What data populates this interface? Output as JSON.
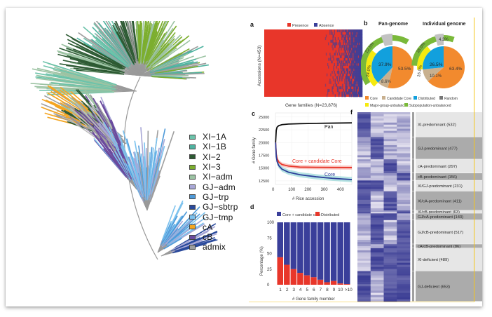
{
  "figure": {
    "tree_legend": [
      {
        "label": "XI-1A",
        "color": "#6cc3aa"
      },
      {
        "label": "XI-1B",
        "color": "#4fb3a0"
      },
      {
        "label": "XI-2",
        "color": "#2d5a33"
      },
      {
        "label": "XI-3",
        "color": "#7cae2e"
      },
      {
        "label": "XI-adm",
        "color": "#9cc3a3"
      },
      {
        "label": "GJ-adm",
        "color": "#a8a7d6"
      },
      {
        "label": "GJ-trp",
        "color": "#4e9ad9"
      },
      {
        "label": "GJ-sbtrp",
        "color": "#2a4a9c"
      },
      {
        "label": "GJ-tmp",
        "color": "#7cc2ee"
      },
      {
        "label": "cA",
        "color": "#f4a521"
      },
      {
        "label": "cB",
        "color": "#6a4a9e"
      },
      {
        "label": "admix",
        "color": "#9e9e9e"
      }
    ],
    "panels": {
      "a": "a",
      "b": "b",
      "c": "c",
      "d": "d",
      "f": "f"
    }
  },
  "chart_data": [
    {
      "id": "a",
      "type": "heatmap",
      "title": "",
      "legend": [
        {
          "label": "Presence",
          "color": "#e8362a"
        },
        {
          "label": "Absence",
          "color": "#3a3f9a"
        }
      ],
      "xlabel": "Gene families (N=23,876)",
      "ylabel": "Accessions (N=453)",
      "presence_fraction_fully_present": 0.62,
      "description": "Presence (red) dominates left; absence (blue) increases to right"
    },
    {
      "id": "b",
      "type": "pie",
      "charts": [
        {
          "title": "Pan-genome",
          "inner": [
            {
              "label": "Core",
              "value": 53.5,
              "color": "#f28a2e"
            },
            {
              "label": "Candidate Core",
              "value": 8.6,
              "color": "#c8b08f"
            },
            {
              "label": "Distributed",
              "value": 37.9,
              "color": "#12a0dd"
            }
          ],
          "outer": [
            {
              "label": "Major-group-unbalanced",
              "value": 24.0,
              "color": "#f5ea10"
            },
            {
              "label": "Subpopulation-unbalanced",
              "value": 22.5,
              "color": "#7ab93a"
            },
            {
              "label": "Random",
              "value": 0,
              "color": "#c2c2c2"
            }
          ],
          "labels": {
            "core": "53.5%",
            "candidate": "8.6%",
            "distributed": "37.9%",
            "major": "24.0%",
            "subpop": "22.5%"
          }
        },
        {
          "title": "Individual genome",
          "inner": [
            {
              "label": "Core",
              "value": 63.4,
              "color": "#f28a2e"
            },
            {
              "label": "Candidate Core",
              "value": 10.1,
              "color": "#c8b08f"
            },
            {
              "label": "Distributed",
              "value": 26.5,
              "color": "#12a0dd"
            }
          ],
          "outer": [
            {
              "label": "Major-group-unbalanced",
              "value": 16.0,
              "color": "#f5ea10"
            },
            {
              "label": "Subpopulation-unbalanced",
              "value": 16.0,
              "color": "#7ab93a"
            },
            {
              "label": "Random",
              "value": 4.3,
              "color": "#c2c2c2"
            }
          ],
          "labels": {
            "core": "63.4%",
            "candidate": "10.1%",
            "distributed": "26.5%",
            "major": "16.0%",
            "subpop": "16.0%",
            "random": "4.3%"
          }
        }
      ],
      "legend": [
        {
          "label": "Core",
          "color": "#f28a2e"
        },
        {
          "label": "Candidate Core",
          "color": "#c8b08f"
        },
        {
          "label": "Distributed",
          "color": "#12a0dd"
        },
        {
          "label": "Random",
          "color": "#777777"
        },
        {
          "label": "Major-group-unbalanced",
          "color": "#f5ea10"
        },
        {
          "label": "Subpopulation-unbalanced",
          "color": "#7ab93a"
        }
      ]
    },
    {
      "id": "c",
      "type": "line",
      "xlabel": "# Rice accession",
      "ylabel": "# Gene family",
      "xlim": [
        0,
        470
      ],
      "ylim": [
        11800,
        25800
      ],
      "xticks": [
        0,
        100,
        200,
        300,
        400
      ],
      "yticks": [
        12500,
        15000,
        17500,
        20000,
        22500,
        25000
      ],
      "series": [
        {
          "name": "Pan",
          "color": "#111111",
          "x": [
            1,
            5,
            10,
            20,
            40,
            80,
            150,
            250,
            350,
            470
          ],
          "y": [
            20000,
            22400,
            23000,
            23300,
            23500,
            23620,
            23700,
            23760,
            23800,
            23850
          ]
        },
        {
          "name": "Core + candidate Core",
          "color": "#e8362a",
          "x": [
            1,
            5,
            10,
            20,
            40,
            80,
            150,
            250,
            350,
            470
          ],
          "y": [
            20000,
            17800,
            16900,
            16200,
            15700,
            15400,
            15200,
            15150,
            15120,
            15100
          ]
        },
        {
          "name": "Core",
          "color": "#2d3f9a",
          "x": [
            1,
            5,
            10,
            20,
            40,
            80,
            150,
            250,
            350,
            470
          ],
          "y": [
            20000,
            17300,
            16300,
            15500,
            14800,
            14200,
            13700,
            13300,
            13000,
            12750
          ]
        }
      ]
    },
    {
      "id": "d",
      "type": "bar",
      "stacked": true,
      "xlabel": "# Gene family member",
      "ylabel": "Percentage (%)",
      "ylim": [
        0,
        100
      ],
      "yticks": [
        0,
        25,
        50,
        75,
        100
      ],
      "categories": [
        "1",
        "2",
        "3",
        "4",
        "5",
        "6",
        "7",
        "8",
        "9",
        "10",
        ">10"
      ],
      "series": [
        {
          "name": "Distributed",
          "color": "#e8362a",
          "values": [
            44,
            32,
            25,
            19,
            15,
            12,
            8,
            4,
            6,
            2,
            1
          ]
        },
        {
          "name": "Core + candidate core",
          "color": "#3a3f9a",
          "values": [
            56,
            68,
            75,
            81,
            85,
            88,
            92,
            96,
            94,
            98,
            99
          ]
        }
      ],
      "legend": [
        {
          "label": "Core + candidate core",
          "color": "#3a3f9a"
        },
        {
          "label": "Distributed",
          "color": "#e8362a"
        }
      ]
    },
    {
      "id": "f",
      "type": "heatmap",
      "columns": 4,
      "groups": [
        {
          "label": "XI-predominant (532)",
          "count": 532
        },
        {
          "label": "GJ-predominant (477)",
          "count": 477
        },
        {
          "label": "cA-predominant (297)",
          "count": 297
        },
        {
          "label": "cB-predominant (156)",
          "count": 156
        },
        {
          "label": "XI/GJ-predominant (231)",
          "count": 231
        },
        {
          "label": "XI/cA-predominant (411)",
          "count": 411
        },
        {
          "label": "XI/cB-predominant (63)",
          "count": 63
        },
        {
          "label": "GJ/cA-predominant (143)",
          "count": 143
        },
        {
          "label": "GJ/cB-predominant (517)",
          "count": 517
        },
        {
          "label": "cA/cB-predominant (86)",
          "count": 86
        },
        {
          "label": "XI-deficient (489)",
          "count": 489
        },
        {
          "label": "GJ-deficient (653)",
          "count": 653
        }
      ],
      "color_low": "#f6f2f8",
      "color_high": "#3b3d94"
    }
  ]
}
